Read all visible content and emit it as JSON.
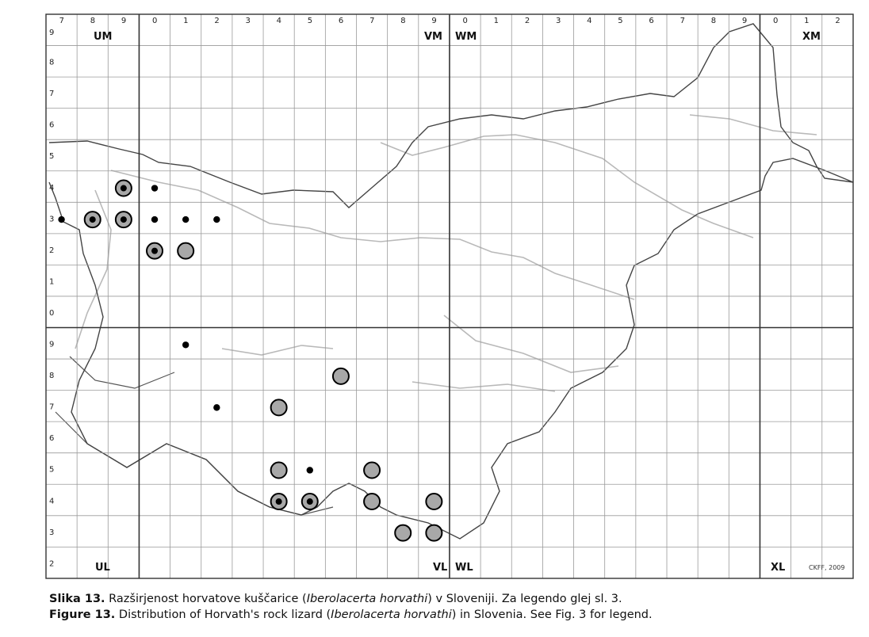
{
  "map": {
    "top_row_labels": [
      "7",
      "8",
      "9",
      "0",
      "1",
      "2",
      "3",
      "4",
      "5",
      "6",
      "7",
      "8",
      "9",
      "0",
      "1",
      "2",
      "3",
      "4",
      "5",
      "6",
      "7",
      "8",
      "9",
      "0",
      "1",
      "2"
    ],
    "left_col_labels": [
      "9",
      "8",
      "7",
      "6",
      "5",
      "4",
      "3",
      "2",
      "1",
      "0",
      "9",
      "8",
      "7",
      "6",
      "5",
      "4",
      "3",
      "2"
    ],
    "zone_labels": {
      "um": "UM",
      "vm": "VM",
      "wm": "WM",
      "xm": "XM",
      "ul": "UL",
      "vl": "VL",
      "wl": "WL",
      "xl": "XL"
    },
    "credit": "CKFF, 2009",
    "records": [
      {
        "col": 2,
        "row": 5,
        "kind": "both"
      },
      {
        "col": 3,
        "row": 5,
        "kind": "old"
      },
      {
        "col": 0,
        "row": 6,
        "kind": "old"
      },
      {
        "col": 1,
        "row": 6,
        "kind": "both"
      },
      {
        "col": 2,
        "row": 6,
        "kind": "both"
      },
      {
        "col": 3,
        "row": 6,
        "kind": "old"
      },
      {
        "col": 4,
        "row": 6,
        "kind": "old"
      },
      {
        "col": 5,
        "row": 6,
        "kind": "old"
      },
      {
        "col": 3,
        "row": 7,
        "kind": "both"
      },
      {
        "col": 4,
        "row": 7,
        "kind": "new"
      },
      {
        "col": 4,
        "row": 10,
        "kind": "old"
      },
      {
        "col": 9,
        "row": 11,
        "kind": "new"
      },
      {
        "col": 5,
        "row": 12,
        "kind": "old"
      },
      {
        "col": 7,
        "row": 12,
        "kind": "new"
      },
      {
        "col": 7,
        "row": 14,
        "kind": "new"
      },
      {
        "col": 8,
        "row": 14,
        "kind": "old"
      },
      {
        "col": 10,
        "row": 14,
        "kind": "new"
      },
      {
        "col": 7,
        "row": 15,
        "kind": "both"
      },
      {
        "col": 8,
        "row": 15,
        "kind": "both"
      },
      {
        "col": 10,
        "row": 15,
        "kind": "new"
      },
      {
        "col": 12,
        "row": 15,
        "kind": "new"
      },
      {
        "col": 11,
        "row": 16,
        "kind": "new"
      },
      {
        "col": 12,
        "row": 16,
        "kind": "new"
      }
    ]
  },
  "caption": {
    "sl_label": "Slika 13.",
    "sl_text_1": " Razširjenost horvatove kuščarice (",
    "sl_species": "Iberolacerta horvathi",
    "sl_text_2": ") v Sloveniji. Za legendo glej sl. 3.",
    "en_label": "Figure 13.",
    "en_text_1": " Distribution of Horvath's rock lizard (",
    "en_species": "Iberolacerta horvathi",
    "en_text_2": ") in Slovenia. See Fig. 3 for legend."
  }
}
